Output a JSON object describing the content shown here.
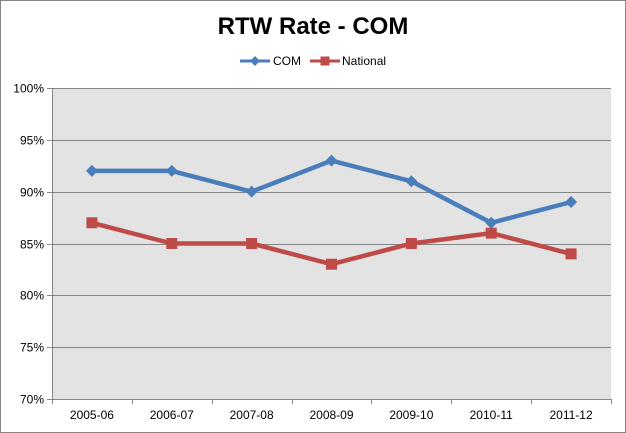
{
  "chart_data": {
    "type": "line",
    "title": "RTW Rate - COM",
    "categories": [
      "2005-06",
      "2006-07",
      "2007-08",
      "2008-09",
      "2009-10",
      "2010-11",
      "2011-12"
    ],
    "series": [
      {
        "name": "COM",
        "values": [
          92,
          92,
          90,
          93,
          91,
          87,
          89
        ],
        "color": "#4a7ebb",
        "marker": "diamond"
      },
      {
        "name": "National",
        "values": [
          87,
          85,
          85,
          83,
          85,
          86,
          84
        ],
        "color": "#be4b48",
        "marker": "square"
      }
    ],
    "ylim": [
      70,
      100
    ],
    "yticks": [
      "70%",
      "75%",
      "80%",
      "85%",
      "90%",
      "95%",
      "100%"
    ],
    "grid": true,
    "legend_position": "top",
    "plot_background": "#e3e3e3",
    "gridline_color": "#868686"
  }
}
